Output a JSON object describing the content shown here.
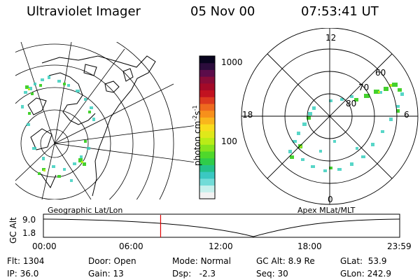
{
  "header": {
    "title": "Ultraviolet Imager",
    "date": "05 Nov 00",
    "time": "07:53:41 UT"
  },
  "colorbar": {
    "ticks": [
      "1000",
      "100"
    ],
    "unit_prefix": "photon cm",
    "unit_sup1": "-2",
    "unit_mid": "s",
    "unit_sup2": "-1",
    "colors": [
      "#f2f2f2",
      "#c6f0ec",
      "#72dcd8",
      "#3bc8c2",
      "#24c18a",
      "#2fcc4a",
      "#4fd82b",
      "#86e31d",
      "#b9ec17",
      "#dfe81a",
      "#f8dc1d",
      "#f9b61c",
      "#f7901b",
      "#ee6a1f",
      "#dc3a1f",
      "#c21220",
      "#a40a28",
      "#880c38",
      "#5c0c4a",
      "#2b0c3c",
      "#08041e"
    ]
  },
  "left_panel": {
    "label": "Geographic Lat/Lon"
  },
  "right_panel": {
    "label": "Apex MLat/MLT",
    "mlt_labels": {
      "top": "12",
      "left": "18",
      "right": "6",
      "bottom": "0"
    },
    "mlat_labels": [
      "60",
      "70",
      "80"
    ]
  },
  "timeline": {
    "y_label": "GC Alt",
    "y_ticks": [
      "9.0",
      "1.8"
    ],
    "x_ticks": [
      "00:00",
      "06:00",
      "12:00",
      "18:00",
      "23:59"
    ],
    "current_time_fraction": 0.329
  },
  "info": {
    "flt_label": "Flt:",
    "flt": "1304",
    "ip_label": "IP:",
    "ip": "36.0",
    "door_label": "Door:",
    "door": "Open",
    "gain_label": "Gain:",
    "gain": "13",
    "mode_label": "Mode:",
    "mode": "Normal",
    "dsp_label": "Dsp:",
    "dsp": "-2.3",
    "gcalt_label": "GC Alt:",
    "gcalt": "8.9 Re",
    "seq_label": "Seq:",
    "seq": "30",
    "glat_label": "GLat:",
    "glat": "53.9",
    "glon_label": "GLon:",
    "glon": "242.9"
  },
  "colors": {
    "marker": "#e00000",
    "foreground": "#000000",
    "background": "#ffffff"
  }
}
